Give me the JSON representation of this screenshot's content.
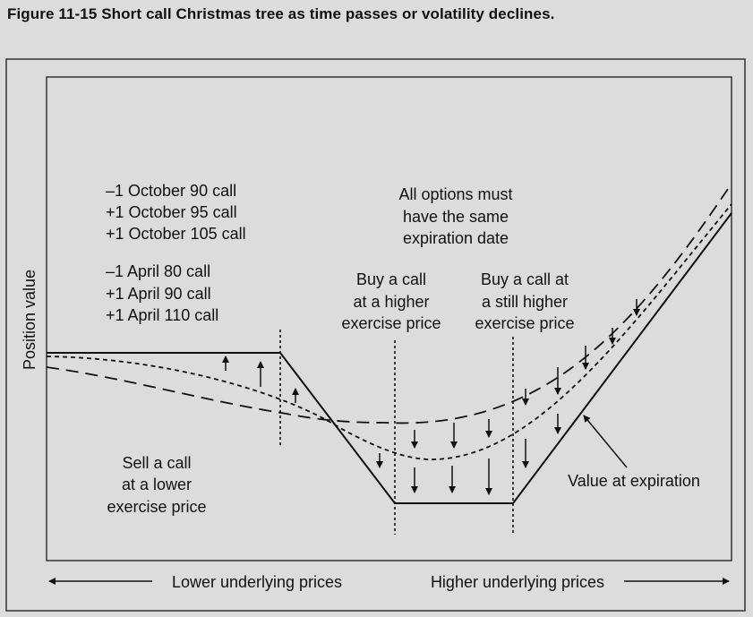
{
  "figure": {
    "title": "Figure 11-15  Short call Christmas tree as time passes or volatility declines."
  },
  "axes": {
    "ylabel": "Position value",
    "x_left": "Lower underlying prices",
    "x_right": "Higher underlying prices"
  },
  "legend_positions": {
    "october": [
      "–1 October 90 call",
      "+1 October 95 call",
      "+1 October 105 call"
    ],
    "april": [
      "–1 April 80 call",
      "+1 April 90 call",
      "+1 April 110 call"
    ]
  },
  "notes": {
    "expiration": [
      "All options must",
      "have the same",
      "expiration date"
    ],
    "buy_higher": [
      "Buy a call",
      "at a higher",
      "exercise price"
    ],
    "buy_still_higher": [
      "Buy a call at",
      "a still higher",
      "exercise price"
    ],
    "sell_lower": [
      "Sell a call",
      "at a lower",
      "exercise price"
    ],
    "value_at_expiration": "Value at expiration"
  },
  "colors": {
    "background": "#dcdcdc",
    "ink": "#111111"
  }
}
